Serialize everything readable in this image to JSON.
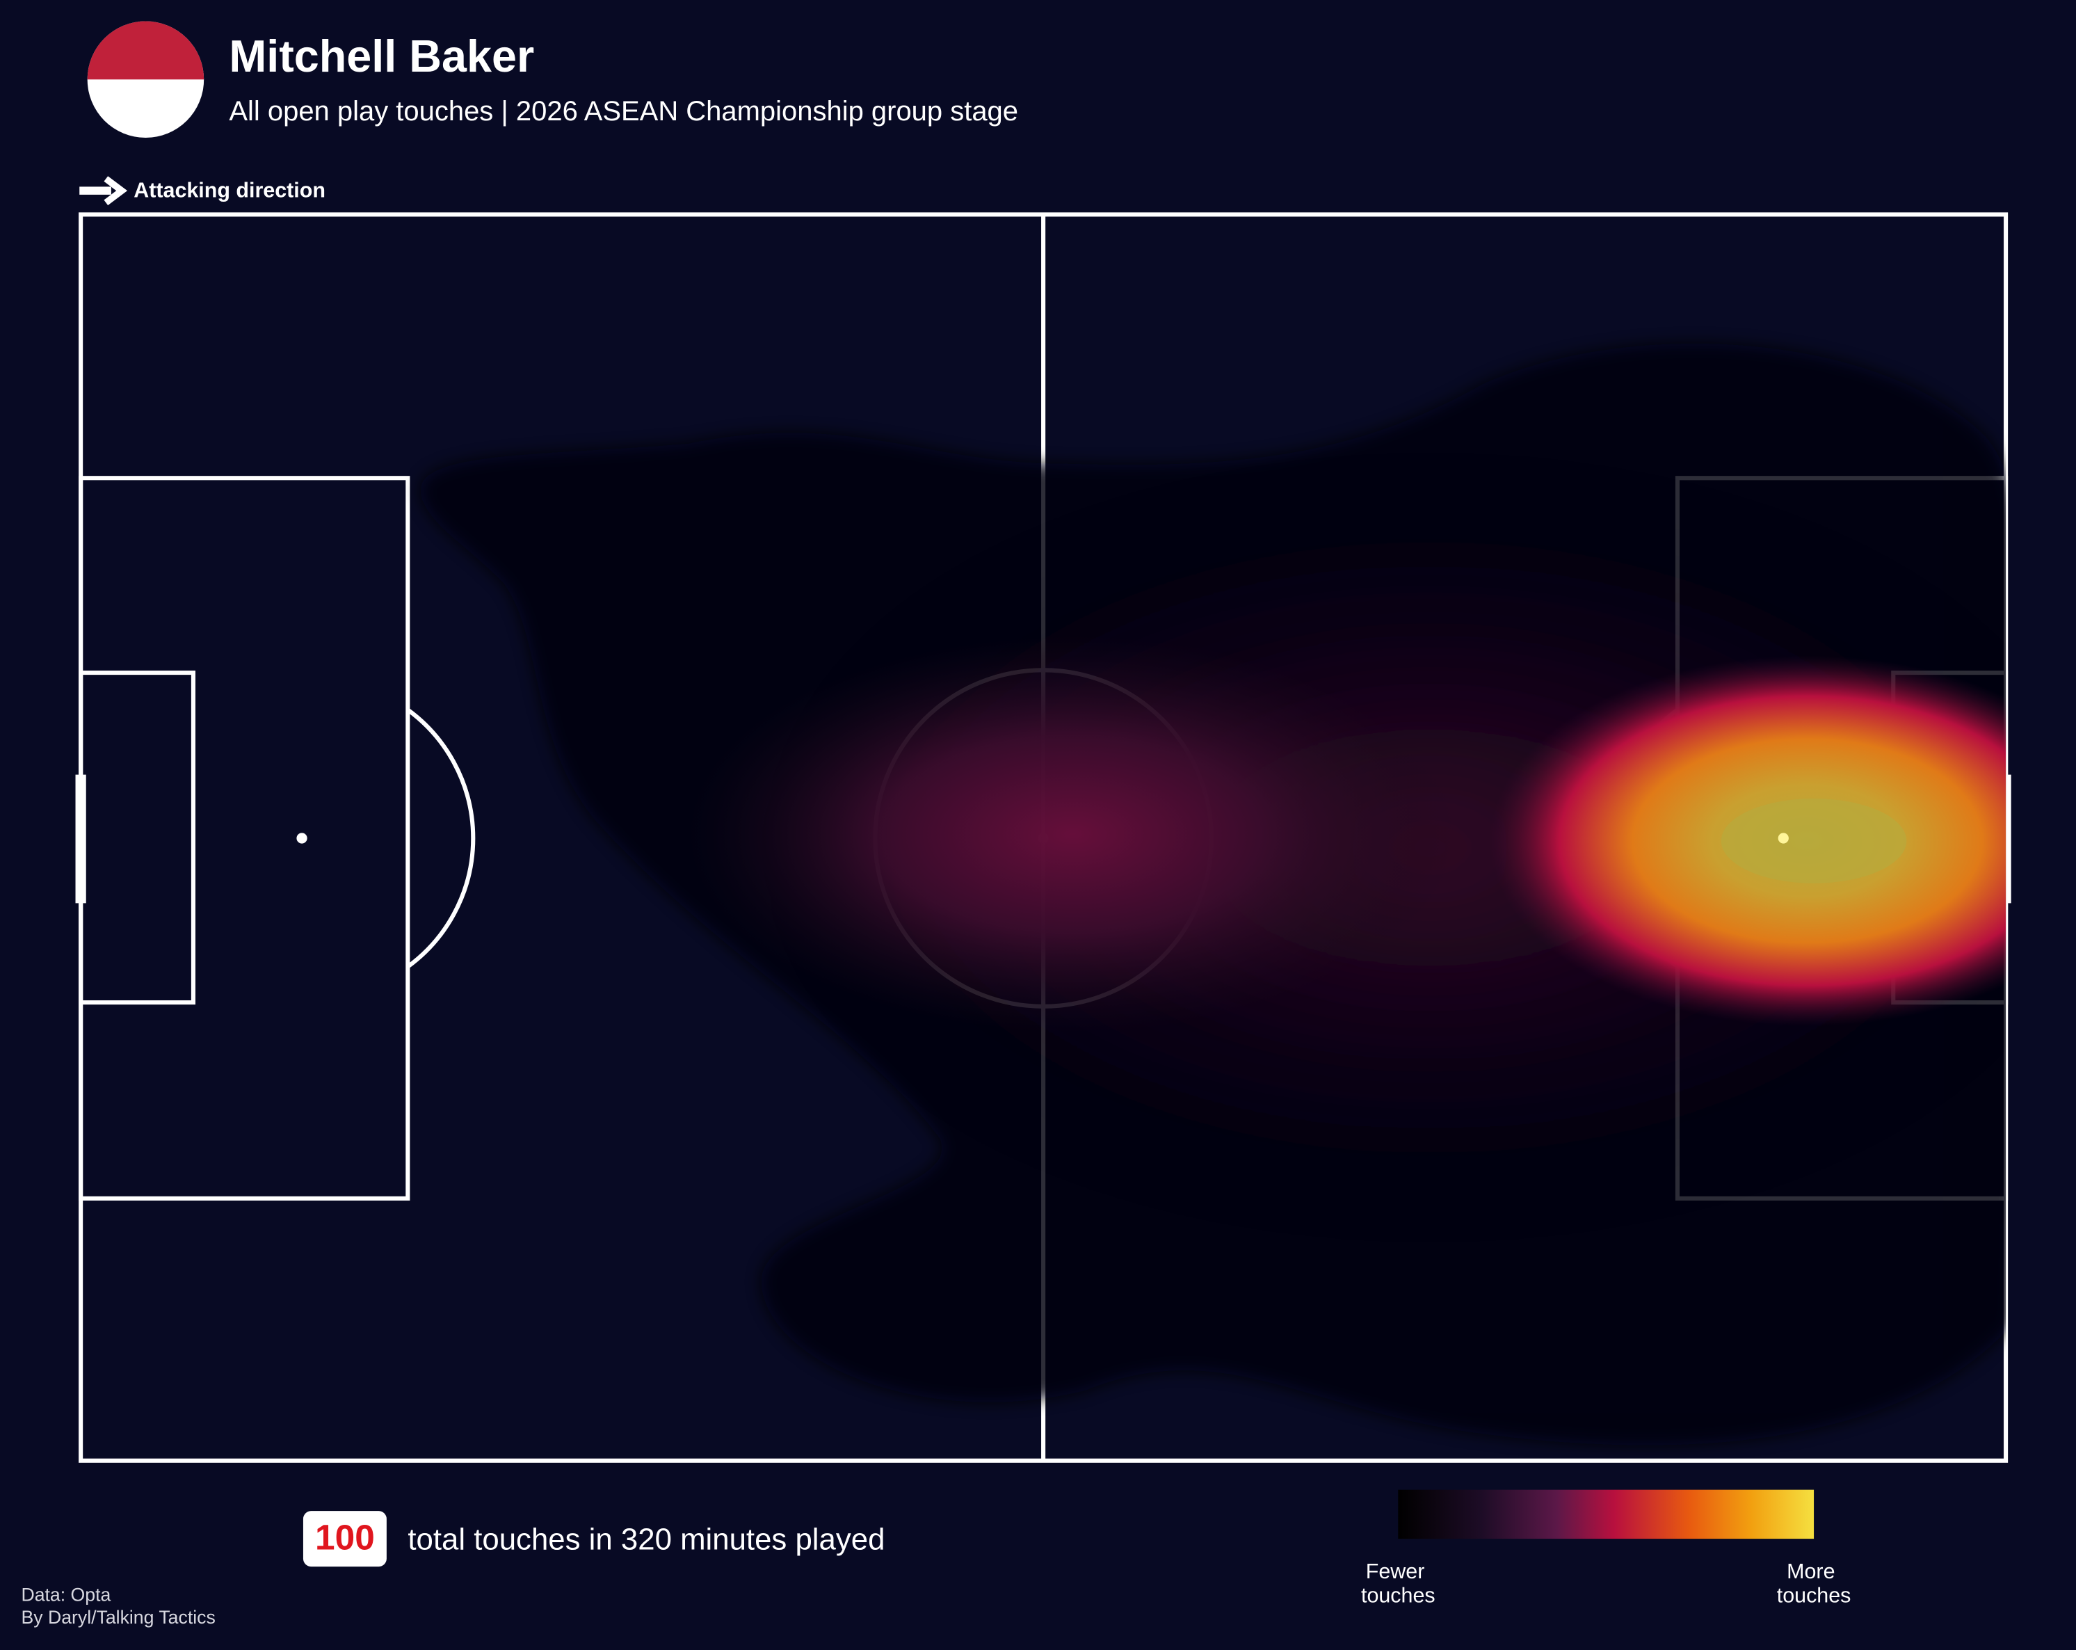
{
  "header": {
    "title": "Mitchell Baker",
    "subtitle": "All open play touches | 2026 ASEAN Championship group stage"
  },
  "direction_label": "Attacking direction",
  "summary": {
    "total_touches": 100,
    "text": "total touches in 320 minutes played"
  },
  "legend": {
    "low": [
      "Fewer",
      "touches"
    ],
    "high": [
      "More",
      "touches"
    ]
  },
  "credits": [
    "Data: Opta",
    "By Daryl/Talking Tactics"
  ]
}
